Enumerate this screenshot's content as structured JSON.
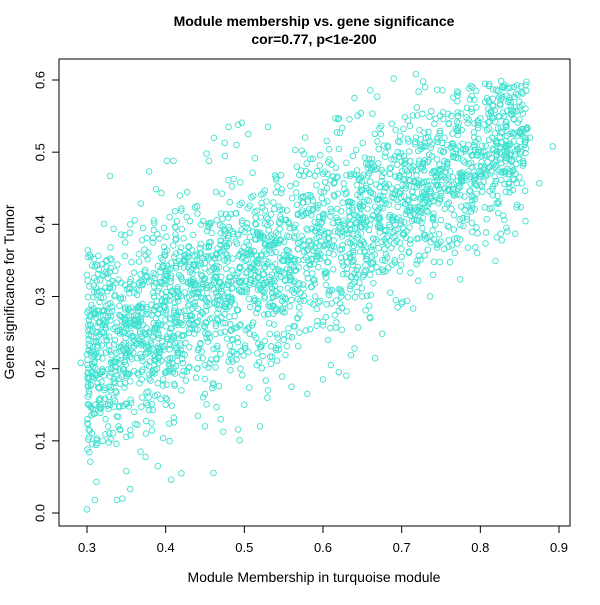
{
  "chart_data": {
    "type": "scatter",
    "title": "Module membership vs. gene significance",
    "subtitle": "cor=0.77, p<1e-200",
    "xlabel": "Module Membership in turquoise module",
    "ylabel": "Gene significance for Tumor",
    "xlim": [
      0.28,
      0.9
    ],
    "ylim": [
      0.0,
      0.62
    ],
    "x_ticks": [
      "0.3",
      "0.4",
      "0.5",
      "0.6",
      "0.7",
      "0.8",
      "0.9"
    ],
    "y_ticks": [
      "0.0",
      "0.1",
      "0.2",
      "0.3",
      "0.4",
      "0.5",
      "0.6"
    ],
    "grid": false,
    "point_color": "#40E0D0",
    "marker": "open-circle",
    "points": [
      [
        0.3,
        0.005
      ],
      [
        0.31,
        0.018
      ],
      [
        0.345,
        0.02
      ],
      [
        0.338,
        0.018
      ],
      [
        0.355,
        0.033
      ],
      [
        0.312,
        0.043
      ],
      [
        0.292,
        0.208
      ],
      [
        0.3,
        0.33
      ],
      [
        0.32,
        0.345
      ],
      [
        0.325,
        0.35
      ],
      [
        0.33,
        0.368
      ],
      [
        0.348,
        0.385
      ],
      [
        0.355,
        0.4
      ],
      [
        0.37,
        0.378
      ],
      [
        0.385,
        0.392
      ],
      [
        0.405,
        0.41
      ],
      [
        0.412,
        0.418
      ],
      [
        0.41,
        0.488
      ],
      [
        0.418,
        0.44
      ],
      [
        0.44,
        0.425
      ],
      [
        0.455,
        0.488
      ],
      [
        0.452,
        0.498
      ],
      [
        0.475,
        0.513
      ],
      [
        0.48,
        0.535
      ],
      [
        0.492,
        0.538
      ],
      [
        0.505,
        0.525
      ],
      [
        0.53,
        0.535
      ],
      [
        0.49,
        0.51
      ],
      [
        0.42,
        0.055
      ],
      [
        0.39,
        0.065
      ],
      [
        0.375,
        0.11
      ],
      [
        0.368,
        0.085
      ],
      [
        0.35,
        0.058
      ],
      [
        0.45,
        0.12
      ],
      [
        0.47,
        0.13
      ],
      [
        0.52,
        0.12
      ],
      [
        0.5,
        0.15
      ],
      [
        0.53,
        0.17
      ],
      [
        0.56,
        0.175
      ],
      [
        0.58,
        0.165
      ],
      [
        0.62,
        0.195
      ],
      [
        0.61,
        0.205
      ],
      [
        0.64,
        0.228
      ],
      [
        0.6,
        0.185
      ],
      [
        0.66,
        0.27
      ],
      [
        0.7,
        0.29
      ],
      [
        0.695,
        0.285
      ],
      [
        0.74,
        0.33
      ],
      [
        0.69,
        0.602
      ],
      [
        0.718,
        0.608
      ],
      [
        0.64,
        0.575
      ],
      [
        0.79,
        0.59
      ],
      [
        0.795,
        0.562
      ],
      [
        0.76,
        0.54
      ],
      [
        0.815,
        0.548
      ],
      [
        0.83,
        0.55
      ],
      [
        0.85,
        0.528
      ],
      [
        0.892,
        0.508
      ],
      [
        0.875,
        0.457
      ],
      [
        0.863,
        0.52
      ],
      [
        0.84,
        0.488
      ],
      [
        0.82,
        0.46
      ],
      [
        0.8,
        0.47
      ],
      [
        0.78,
        0.42
      ],
      [
        0.76,
        0.43
      ],
      [
        0.74,
        0.41
      ],
      [
        0.73,
        0.38
      ],
      [
        0.72,
        0.35
      ],
      [
        0.7,
        0.355
      ],
      [
        0.68,
        0.375
      ],
      [
        0.66,
        0.33
      ],
      [
        0.65,
        0.3
      ],
      [
        0.64,
        0.32
      ],
      [
        0.62,
        0.28
      ],
      [
        0.6,
        0.26
      ],
      [
        0.59,
        0.3
      ],
      [
        0.57,
        0.25
      ],
      [
        0.55,
        0.24
      ],
      [
        0.54,
        0.28
      ],
      [
        0.52,
        0.23
      ],
      [
        0.51,
        0.26
      ],
      [
        0.495,
        0.2
      ],
      [
        0.48,
        0.21
      ],
      [
        0.47,
        0.25
      ],
      [
        0.46,
        0.18
      ],
      [
        0.44,
        0.2
      ],
      [
        0.43,
        0.23
      ],
      [
        0.42,
        0.17
      ],
      [
        0.41,
        0.2
      ],
      [
        0.4,
        0.15
      ],
      [
        0.39,
        0.18
      ],
      [
        0.38,
        0.21
      ],
      [
        0.37,
        0.16
      ],
      [
        0.36,
        0.14
      ],
      [
        0.35,
        0.19
      ],
      [
        0.34,
        0.12
      ],
      [
        0.33,
        0.17
      ],
      [
        0.32,
        0.1
      ],
      [
        0.31,
        0.15
      ],
      [
        0.3,
        0.22
      ],
      [
        0.305,
        0.26
      ],
      [
        0.315,
        0.28
      ],
      [
        0.325,
        0.24
      ],
      [
        0.335,
        0.3
      ],
      [
        0.345,
        0.26
      ],
      [
        0.355,
        0.32
      ],
      [
        0.365,
        0.28
      ],
      [
        0.375,
        0.23
      ],
      [
        0.385,
        0.3
      ],
      [
        0.395,
        0.34
      ],
      [
        0.405,
        0.27
      ],
      [
        0.415,
        0.31
      ],
      [
        0.425,
        0.35
      ],
      [
        0.435,
        0.29
      ],
      [
        0.445,
        0.33
      ],
      [
        0.455,
        0.37
      ],
      [
        0.465,
        0.3
      ],
      [
        0.475,
        0.35
      ],
      [
        0.485,
        0.39
      ],
      [
        0.495,
        0.32
      ],
      [
        0.505,
        0.36
      ],
      [
        0.515,
        0.4
      ],
      [
        0.525,
        0.34
      ],
      [
        0.535,
        0.38
      ],
      [
        0.545,
        0.42
      ],
      [
        0.555,
        0.35
      ],
      [
        0.565,
        0.39
      ],
      [
        0.575,
        0.43
      ],
      [
        0.585,
        0.37
      ],
      [
        0.595,
        0.41
      ],
      [
        0.605,
        0.45
      ],
      [
        0.615,
        0.39
      ],
      [
        0.625,
        0.43
      ],
      [
        0.635,
        0.47
      ],
      [
        0.645,
        0.41
      ],
      [
        0.655,
        0.45
      ],
      [
        0.665,
        0.48
      ],
      [
        0.675,
        0.43
      ],
      [
        0.685,
        0.47
      ],
      [
        0.695,
        0.5
      ],
      [
        0.705,
        0.45
      ],
      [
        0.715,
        0.48
      ],
      [
        0.725,
        0.51
      ],
      [
        0.735,
        0.46
      ],
      [
        0.745,
        0.49
      ],
      [
        0.755,
        0.45
      ],
      [
        0.765,
        0.5
      ],
      [
        0.775,
        0.47
      ],
      [
        0.785,
        0.51
      ],
      [
        0.795,
        0.48
      ],
      [
        0.805,
        0.5
      ],
      [
        0.815,
        0.52
      ],
      [
        0.825,
        0.49
      ],
      [
        0.835,
        0.51
      ],
      [
        0.845,
        0.47
      ]
    ]
  }
}
